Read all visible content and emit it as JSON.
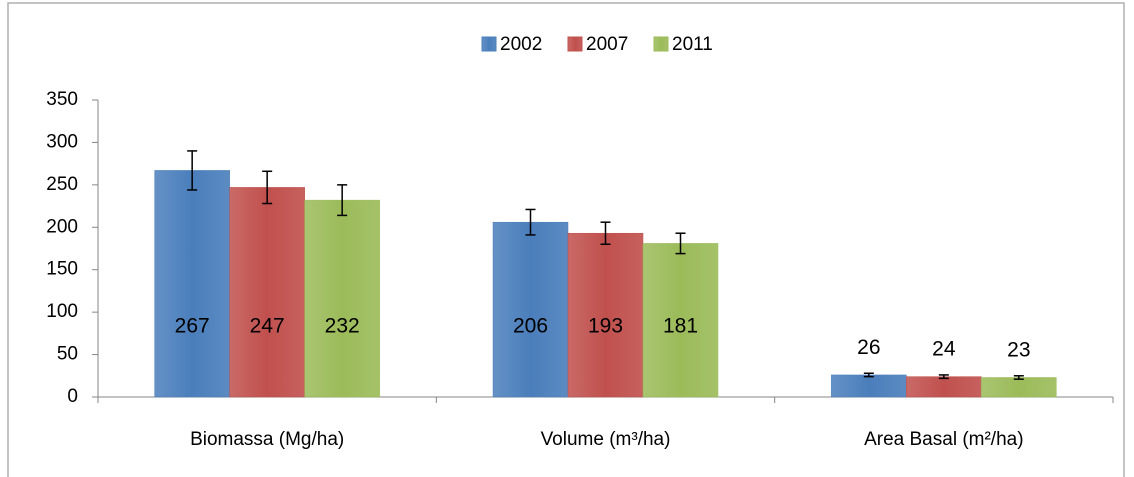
{
  "chart_data": {
    "type": "bar",
    "categories": [
      "Biomassa (Mg/ha)",
      "Volume (m³/ha)",
      "Area Basal (m²/ha)"
    ],
    "series": [
      {
        "name": "2002",
        "color": "#4a7ebb",
        "values": [
          267,
          206,
          26
        ],
        "errors": [
          23,
          15,
          2
        ]
      },
      {
        "name": "2007",
        "color": "#c0504d",
        "values": [
          247,
          193,
          24
        ],
        "errors": [
          19,
          13,
          2
        ]
      },
      {
        "name": "2011",
        "color": "#9bbb59",
        "values": [
          232,
          181,
          23
        ],
        "errors": [
          18,
          12,
          2
        ]
      }
    ],
    "ylim": [
      0,
      350
    ],
    "yticks": [
      0,
      50,
      100,
      150,
      200,
      250,
      300,
      350
    ],
    "grid": false,
    "legend": "top"
  }
}
